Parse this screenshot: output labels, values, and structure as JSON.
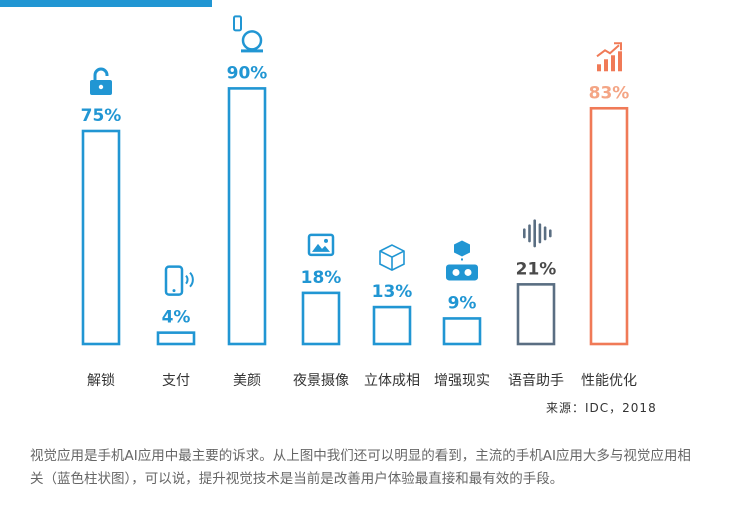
{
  "chart_data": {
    "type": "bar",
    "categories": [
      "解锁",
      "支付",
      "美颜",
      "夜景摄像",
      "立体成相",
      "增强现实",
      "语音助手",
      "性能优化"
    ],
    "values": [
      75,
      4,
      90,
      18,
      13,
      9,
      21,
      83
    ],
    "value_labels": [
      "75%",
      "4%",
      "90%",
      "18%",
      "13%",
      "9%",
      "21%",
      "83%"
    ],
    "ylim": [
      0,
      100
    ],
    "grid": false,
    "legend": "none",
    "icons": [
      "unlock-icon",
      "phone-nfc-icon",
      "mirror-icon",
      "photo-icon",
      "cube-icon",
      "ar-icon",
      "soundwave-icon",
      "performance-chart-icon"
    ],
    "colors": {
      "vision": "#2196d3",
      "voice": "#5a6e82",
      "performance": "#f07a57",
      "label": "#333333"
    },
    "bar_colors": [
      "#2196d3",
      "#2196d3",
      "#2196d3",
      "#2196d3",
      "#2196d3",
      "#2196d3",
      "#5a6e82",
      "#f07a57"
    ],
    "value_label_colors": [
      "#2196d3",
      "#2196d3",
      "#2196d3",
      "#2196d3",
      "#2196d3",
      "#2196d3",
      "#4a4a4a",
      "#f4a585"
    ]
  },
  "source": "来源：IDC，2018",
  "footer_text": "视觉应用是手机AI应用中最主要的诉求。从上图中我们还可以明显的看到，主流的手机AI应用大多与视觉应用相关（蓝色柱状图），可以说，提升视觉技术是当前是改善用户体验最直接和最有效的手段。"
}
